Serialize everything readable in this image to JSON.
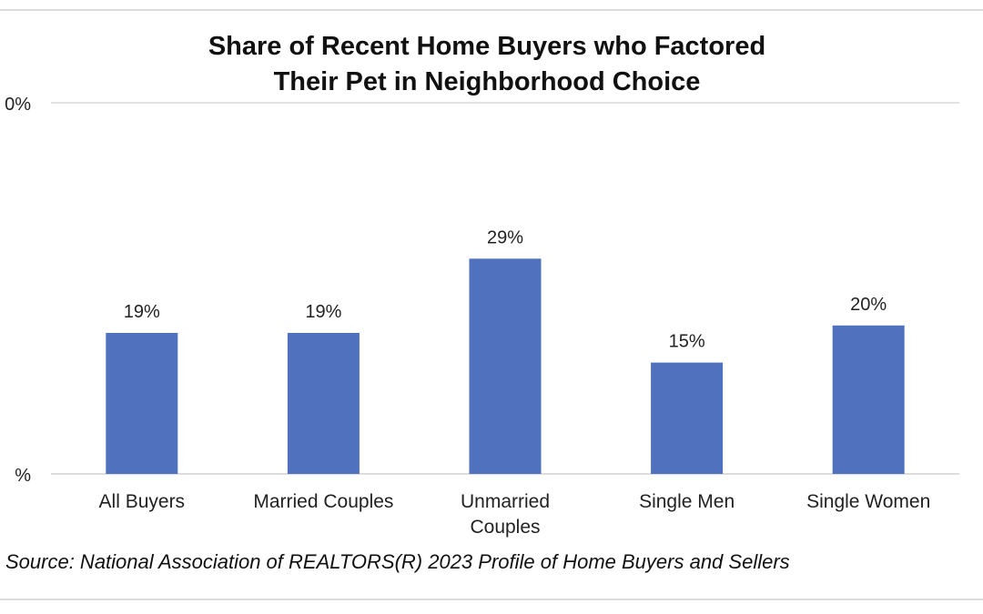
{
  "chart_data": {
    "type": "bar",
    "title": "Share of Recent Home Buyers who Factored Their Pet in Neighborhood Choice",
    "title_lines": [
      "Share of Recent Home Buyers who Factored",
      "Their Pet in Neighborhood Choice"
    ],
    "categories": [
      "All Buyers",
      "Married Couples",
      "Unmarried Couples",
      "Single Men",
      "Single Women"
    ],
    "category_lines": [
      [
        "All Buyers"
      ],
      [
        "Married Couples"
      ],
      [
        "Unmarried",
        "Couples"
      ],
      [
        "Single Men"
      ],
      [
        "Single Women"
      ]
    ],
    "values": [
      19,
      19,
      29,
      15,
      20
    ],
    "data_labels": [
      "19%",
      "19%",
      "29%",
      "15%",
      "20%"
    ],
    "y_tick_labels": [
      "0%",
      "%"
    ],
    "ylim": [
      0,
      50
    ],
    "grid": true,
    "bar_color": "#4f71be",
    "xlabel": "",
    "ylabel": ""
  },
  "source": "Source: National Association of REALTORS(R) 2023 Profile of Home Buyers and Sellers"
}
